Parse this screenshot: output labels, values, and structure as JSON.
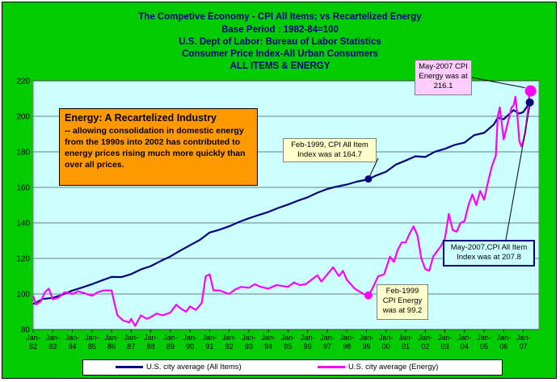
{
  "titles": [
    "The Competive Economy - CPI All Items; vs Recartelized Energy",
    "Base Period : 1982-84=100",
    "U.S. Dept of Labor: Bureau of Labor Statistics",
    "Consumer Price Index-All Urban Consumers",
    "ALL ITEMS & ENERGY"
  ],
  "energy_box": {
    "heading": "Energy: A Recartelized Industry",
    "body": "-- allowing consolidation in domestic energy from the 1990s into 2002 has contributed to energy prices rising much more quickly than over all prices."
  },
  "callouts": {
    "may2007_energy": "May-2007 CPI Energy was at 216.1",
    "feb1999_all": "Feb-1999, CPI All Item Index was at 164.7",
    "feb1999_energy": "Feb-1999 CPI Energy was at 99.2",
    "may2007_all": "May-2007,CPI All Item Index was at 207.8"
  },
  "colors": {
    "plot_background": "#ccffff",
    "outer_background": "#00cc00",
    "all_items": "#000080",
    "energy": "#ff00ff",
    "title": "#000080"
  },
  "chart_data": {
    "type": "line",
    "ylim": [
      80,
      220
    ],
    "yticks": [
      80,
      100,
      120,
      140,
      160,
      180,
      200,
      220
    ],
    "xticks": [
      "Jan-82",
      "Jan-83",
      "Jan-84",
      "Jan-85",
      "Jan-86",
      "Jan-87",
      "Jan-88",
      "Jan-89",
      "Jan-90",
      "Jan-91",
      "Jan-92",
      "Jan-93",
      "Jan-94",
      "Jan-95",
      "Jan-96",
      "Jan-97",
      "Jan-98",
      "Jan-99",
      "Jan-00",
      "Jan-01",
      "Jan-02",
      "Jan-03",
      "Jan-04",
      "Jan-05",
      "Jan-06",
      "Jan-07"
    ],
    "grid": true,
    "legend": "bottom",
    "series": [
      {
        "name": "U.S. city average (All Items)",
        "color": "#000080",
        "points": [
          [
            1982.0,
            94.3
          ],
          [
            1982.5,
            97.2
          ],
          [
            1983.0,
            97.8
          ],
          [
            1983.5,
            99.6
          ],
          [
            1984.0,
            101.9
          ],
          [
            1984.5,
            103.7
          ],
          [
            1985.0,
            105.5
          ],
          [
            1985.5,
            107.6
          ],
          [
            1986.0,
            109.6
          ],
          [
            1986.5,
            109.5
          ],
          [
            1987.0,
            111.2
          ],
          [
            1987.5,
            113.8
          ],
          [
            1988.0,
            115.7
          ],
          [
            1988.5,
            118.5
          ],
          [
            1989.0,
            121.1
          ],
          [
            1989.5,
            124.4
          ],
          [
            1990.0,
            127.4
          ],
          [
            1990.5,
            130.4
          ],
          [
            1991.0,
            134.6
          ],
          [
            1991.5,
            136.2
          ],
          [
            1992.0,
            138.1
          ],
          [
            1992.5,
            140.5
          ],
          [
            1993.0,
            142.6
          ],
          [
            1993.5,
            144.4
          ],
          [
            1994.0,
            146.2
          ],
          [
            1994.5,
            148.4
          ],
          [
            1995.0,
            150.3
          ],
          [
            1995.5,
            152.5
          ],
          [
            1996.0,
            154.4
          ],
          [
            1996.5,
            157.0
          ],
          [
            1997.0,
            159.1
          ],
          [
            1997.5,
            160.5
          ],
          [
            1998.0,
            161.6
          ],
          [
            1998.5,
            163.2
          ],
          [
            1999.0,
            164.3
          ],
          [
            1999.1,
            164.7
          ],
          [
            1999.5,
            166.7
          ],
          [
            2000.0,
            168.8
          ],
          [
            2000.5,
            172.8
          ],
          [
            2001.0,
            175.1
          ],
          [
            2001.5,
            177.5
          ],
          [
            2002.0,
            177.1
          ],
          [
            2002.5,
            180.1
          ],
          [
            2003.0,
            181.7
          ],
          [
            2003.5,
            183.9
          ],
          [
            2004.0,
            185.2
          ],
          [
            2004.5,
            189.4
          ],
          [
            2005.0,
            190.7
          ],
          [
            2005.5,
            195.4
          ],
          [
            2005.7,
            199.2
          ],
          [
            2006.0,
            198.3
          ],
          [
            2006.5,
            203.5
          ],
          [
            2006.8,
            201.5
          ],
          [
            2007.0,
            202.4
          ],
          [
            2007.33,
            207.8
          ]
        ]
      },
      {
        "name": "U.S. city average (Energy)",
        "color": "#ff00ff",
        "points": [
          [
            1982.0,
            99.0
          ],
          [
            1982.15,
            94.0
          ],
          [
            1982.4,
            96.0
          ],
          [
            1982.6,
            101.0
          ],
          [
            1982.8,
            103.0
          ],
          [
            1983.0,
            97.0
          ],
          [
            1983.3,
            98.0
          ],
          [
            1983.6,
            101.0
          ],
          [
            1984.0,
            100.0
          ],
          [
            1984.3,
            101.5
          ],
          [
            1984.6,
            100.5
          ],
          [
            1985.0,
            99.0
          ],
          [
            1985.3,
            101.0
          ],
          [
            1985.6,
            102.0
          ],
          [
            1986.0,
            102.0
          ],
          [
            1986.1,
            97.0
          ],
          [
            1986.3,
            88.0
          ],
          [
            1986.6,
            85.0
          ],
          [
            1986.9,
            84.0
          ],
          [
            1987.0,
            86.0
          ],
          [
            1987.2,
            82.0
          ],
          [
            1987.5,
            88.0
          ],
          [
            1987.8,
            86.0
          ],
          [
            1988.0,
            87.0
          ],
          [
            1988.3,
            89.0
          ],
          [
            1988.6,
            88.0
          ],
          [
            1989.0,
            89.5
          ],
          [
            1989.3,
            94.0
          ],
          [
            1989.5,
            92.0
          ],
          [
            1989.8,
            90.0
          ],
          [
            1990.0,
            93.0
          ],
          [
            1990.3,
            91.0
          ],
          [
            1990.6,
            95.0
          ],
          [
            1990.8,
            110.0
          ],
          [
            1991.0,
            111.0
          ],
          [
            1991.2,
            102.0
          ],
          [
            1991.5,
            102.0
          ],
          [
            1992.0,
            100.0
          ],
          [
            1992.3,
            102.5
          ],
          [
            1992.6,
            104.0
          ],
          [
            1993.0,
            103.5
          ],
          [
            1993.3,
            105.5
          ],
          [
            1993.6,
            104.0
          ],
          [
            1994.0,
            103.0
          ],
          [
            1994.4,
            105.0
          ],
          [
            1994.7,
            104.5
          ],
          [
            1995.0,
            104.0
          ],
          [
            1995.3,
            106.5
          ],
          [
            1995.6,
            105.0
          ],
          [
            1995.9,
            105.5
          ],
          [
            1996.2,
            108.0
          ],
          [
            1996.5,
            110.5
          ],
          [
            1996.7,
            107.0
          ],
          [
            1997.0,
            111.0
          ],
          [
            1997.3,
            115.0
          ],
          [
            1997.6,
            110.0
          ],
          [
            1997.8,
            113.0
          ],
          [
            1998.0,
            108.0
          ],
          [
            1998.4,
            103.0
          ],
          [
            1998.7,
            101.0
          ],
          [
            1999.0,
            99.0
          ],
          [
            1999.1,
            99.2
          ],
          [
            1999.3,
            103.0
          ],
          [
            1999.6,
            110.0
          ],
          [
            1999.9,
            111.0
          ],
          [
            2000.2,
            121.0
          ],
          [
            2000.4,
            118.0
          ],
          [
            2000.6,
            125.0
          ],
          [
            2000.8,
            129.0
          ],
          [
            2001.0,
            129.0
          ],
          [
            2001.2,
            134.0
          ],
          [
            2001.4,
            138.0
          ],
          [
            2001.6,
            133.0
          ],
          [
            2001.8,
            120.0
          ],
          [
            2002.0,
            114.0
          ],
          [
            2002.2,
            113.0
          ],
          [
            2002.4,
            121.0
          ],
          [
            2002.6,
            124.0
          ],
          [
            2002.8,
            127.0
          ],
          [
            2003.0,
            131.0
          ],
          [
            2003.2,
            145.0
          ],
          [
            2003.4,
            136.0
          ],
          [
            2003.6,
            135.0
          ],
          [
            2003.8,
            140.0
          ],
          [
            2004.0,
            141.0
          ],
          [
            2004.2,
            150.0
          ],
          [
            2004.4,
            156.0
          ],
          [
            2004.6,
            150.0
          ],
          [
            2004.8,
            158.0
          ],
          [
            2005.0,
            153.0
          ],
          [
            2005.2,
            163.0
          ],
          [
            2005.4,
            172.0
          ],
          [
            2005.6,
            178.0
          ],
          [
            2005.7,
            200.0
          ],
          [
            2005.8,
            205.0
          ],
          [
            2006.0,
            187.0
          ],
          [
            2006.2,
            196.0
          ],
          [
            2006.4,
            205.0
          ],
          [
            2006.5,
            206.0
          ],
          [
            2006.6,
            211.0
          ],
          [
            2006.7,
            200.0
          ],
          [
            2006.8,
            186.0
          ],
          [
            2006.9,
            183.0
          ],
          [
            2007.0,
            186.0
          ],
          [
            2007.1,
            191.0
          ],
          [
            2007.25,
            205.0
          ],
          [
            2007.33,
            216.1
          ]
        ]
      }
    ]
  }
}
